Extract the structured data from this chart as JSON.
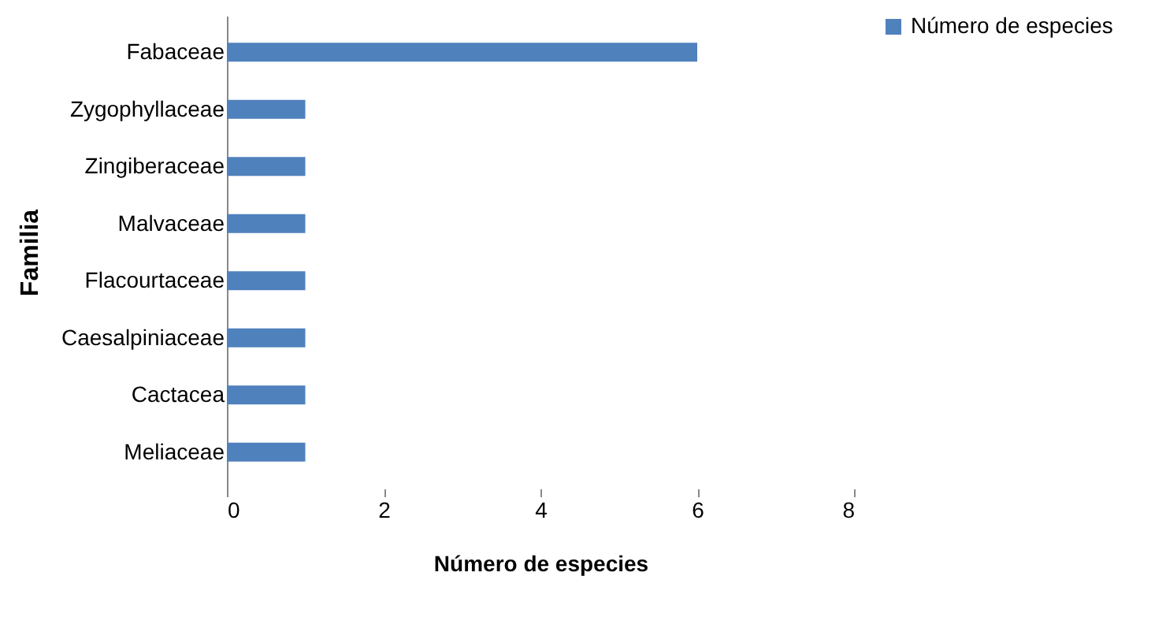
{
  "chart_data": {
    "type": "bar",
    "orientation": "horizontal",
    "xlabel": "Número de especies",
    "ylabel": "Familia",
    "categories": [
      "Fabaceae",
      "Zygophyllaceae",
      "Zingiberaceae",
      "Malvaceae",
      "Flacourtaceae",
      "Caesalpiniaceae",
      "Cactacea",
      "Meliaceae"
    ],
    "series": [
      {
        "name": "Número de especies",
        "color": "#4f81bd",
        "values": [
          6,
          1,
          1,
          1,
          1,
          1,
          1,
          1
        ]
      }
    ],
    "xlim": [
      0,
      8
    ],
    "xticks": [
      0,
      2,
      4,
      6,
      8
    ],
    "grid": false,
    "legend": "right"
  }
}
